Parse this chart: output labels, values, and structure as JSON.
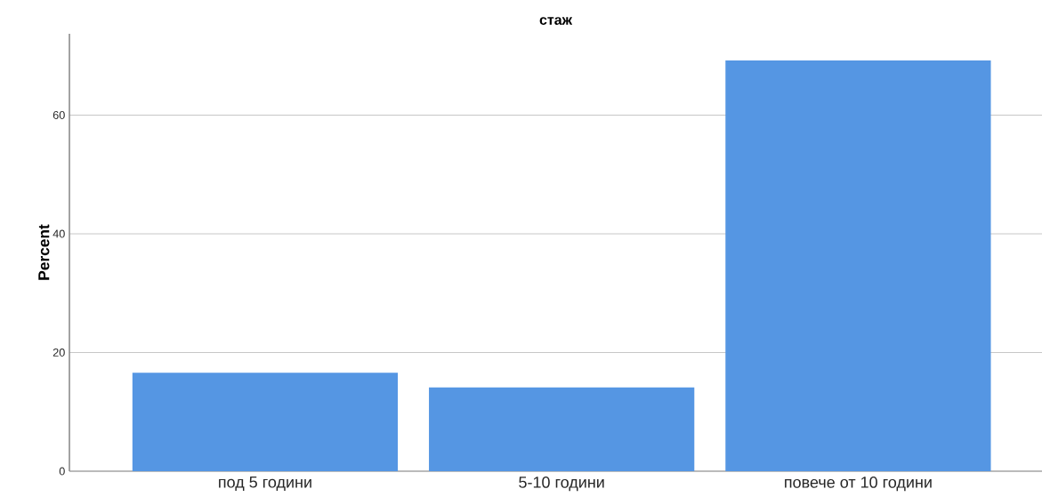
{
  "chart_data": {
    "type": "bar",
    "title": "стаж",
    "ylabel": "Percent",
    "categories": [
      "под 5 години",
      "5-10 години",
      "повече от 10 години"
    ],
    "values": [
      16.6,
      14.1,
      69.2
    ],
    "color": "#5596e3",
    "ylim": [
      0,
      73.7
    ],
    "yticks": [
      0,
      20,
      40,
      60
    ],
    "grid": "y"
  }
}
